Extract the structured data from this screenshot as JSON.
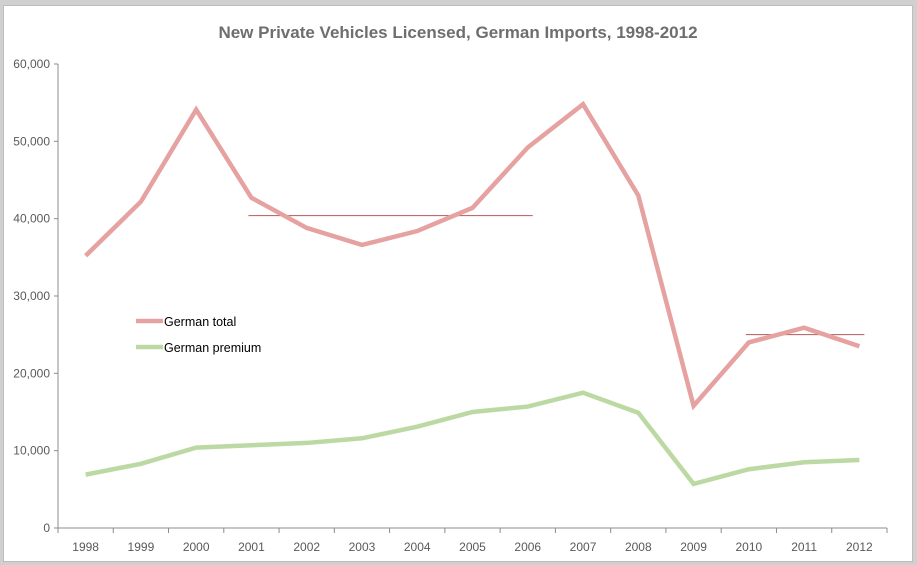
{
  "chart_data": {
    "type": "line",
    "title": "New Private Vehicles Licensed, German Imports, 1998-2012",
    "xlabel": "",
    "ylabel": "",
    "categories": [
      "1998",
      "1999",
      "2000",
      "2001",
      "2002",
      "2003",
      "2004",
      "2005",
      "2006",
      "2007",
      "2008",
      "2009",
      "2010",
      "2011",
      "2012"
    ],
    "ylim": [
      0,
      60000
    ],
    "yticks": [
      0,
      10000,
      20000,
      30000,
      40000,
      50000,
      60000
    ],
    "ytick_labels": [
      "0",
      "10,000",
      "20,000",
      "30,000",
      "40,000",
      "50,000",
      "60,000"
    ],
    "grid": false,
    "legend_placement": "left-middle",
    "series": [
      {
        "name": "German total",
        "color": "#e6a1a1",
        "values": [
          35200,
          42200,
          54100,
          42700,
          38800,
          36600,
          38400,
          41400,
          49200,
          54800,
          43000,
          15800,
          24000,
          25900,
          23500
        ]
      },
      {
        "name": "German premium",
        "color": "#bcd9a3",
        "values": [
          6900,
          8300,
          10400,
          10700,
          11000,
          11600,
          13100,
          15000,
          15700,
          17500,
          14900,
          5700,
          7600,
          8500,
          8800
        ]
      }
    ],
    "reference_lines": [
      {
        "y": 40400,
        "from": "2001",
        "to": "2006",
        "color": "#b35a5a"
      },
      {
        "y": 25000,
        "from": "2010",
        "to": "2012",
        "color": "#b35a5a"
      }
    ]
  }
}
